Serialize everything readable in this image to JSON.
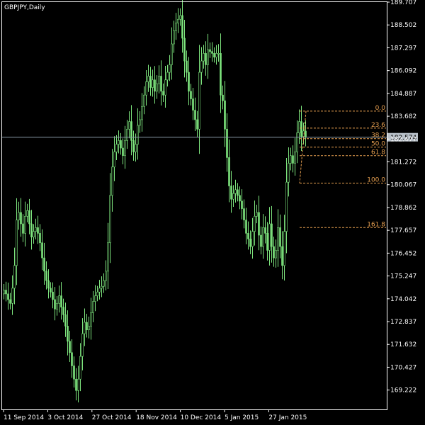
{
  "chart_data": {
    "type": "candlestick",
    "title": "GBPJPY,Daily",
    "current_price": "182.574",
    "colors": {
      "background": "#000000",
      "frame": "#ffffff",
      "candle": "#7ee57e",
      "fib": "#e8a050",
      "price_line": "#8a9aa8",
      "price_label_bg": "#b8c0c8"
    },
    "y_axis": {
      "range": [
        168.2,
        189.707
      ],
      "ticks": [
        "189.707",
        "188.502",
        "187.297",
        "186.092",
        "184.887",
        "183.682",
        "182.477",
        "181.272",
        "180.067",
        "178.862",
        "177.657",
        "176.452",
        "175.247",
        "174.042",
        "172.837",
        "171.632",
        "170.427",
        "169.222"
      ]
    },
    "x_axis": {
      "labels": [
        "11 Sep 2014",
        "3 Oct 2014",
        "27 Oct 2014",
        "18 Nov 2014",
        "10 Dec 2014",
        "5 Jan 2015",
        "27 Jan 2015"
      ]
    },
    "fibonacci": {
      "high": 183.95,
      "low": 180.15,
      "levels": [
        {
          "label": "0.0",
          "ratio": 0.0
        },
        {
          "label": "23.6",
          "ratio": 0.236
        },
        {
          "label": "38.2",
          "ratio": 0.382
        },
        {
          "label": "50.0",
          "ratio": 0.5
        },
        {
          "label": "61.8",
          "ratio": 0.618
        },
        {
          "label": "100.0",
          "ratio": 1.0
        },
        {
          "label": "161.8",
          "ratio": 1.618
        }
      ]
    },
    "closes": [
      174.5,
      174.3,
      174.0,
      173.8,
      174.6,
      175.8,
      178.2,
      178.6,
      178.0,
      177.5,
      178.4,
      178.7,
      178.0,
      177.3,
      177.6,
      177.8,
      177.5,
      177.0,
      176.2,
      175.5,
      175.0,
      174.6,
      174.4,
      174.0,
      173.5,
      173.8,
      174.2,
      173.6,
      173.2,
      172.6,
      171.8,
      171.2,
      170.5,
      169.8,
      169.2,
      169.8,
      171.0,
      172.2,
      172.8,
      172.4,
      172.6,
      173.3,
      173.9,
      174.2,
      174.4,
      174.6,
      174.7,
      175.0,
      175.5,
      177.0,
      179.5,
      181.0,
      181.8,
      182.2,
      182.4,
      182.0,
      181.6,
      182.4,
      183.0,
      183.4,
      182.4,
      181.8,
      182.2,
      183.2,
      183.5,
      184.2,
      184.8,
      185.5,
      185.8,
      185.2,
      185.6,
      185.0,
      185.4,
      185.8,
      185.0,
      184.8,
      185.6,
      186.0,
      186.4,
      187.5,
      188.2,
      188.6,
      188.8,
      189.0,
      187.8,
      186.6,
      186.0,
      185.0,
      184.6,
      184.0,
      183.5,
      183.0,
      186.0,
      186.6,
      187.0,
      186.4,
      187.2,
      187.1,
      187.0,
      186.8,
      187.0,
      187.0,
      184.8,
      184.5,
      183.0,
      181.5,
      180.0,
      179.3,
      179.6,
      179.8,
      179.5,
      179.2,
      178.8,
      178.2,
      177.5,
      177.2,
      176.8,
      177.6,
      178.4,
      178.6,
      177.4,
      176.8,
      177.8,
      177.5,
      176.6,
      178.0,
      176.8,
      176.2,
      176.6,
      177.8,
      176.8,
      175.8,
      177.6,
      180.2,
      181.2,
      181.6,
      181.2,
      181.8,
      182.8,
      183.4,
      182.6,
      182.9,
      182.6
    ]
  }
}
